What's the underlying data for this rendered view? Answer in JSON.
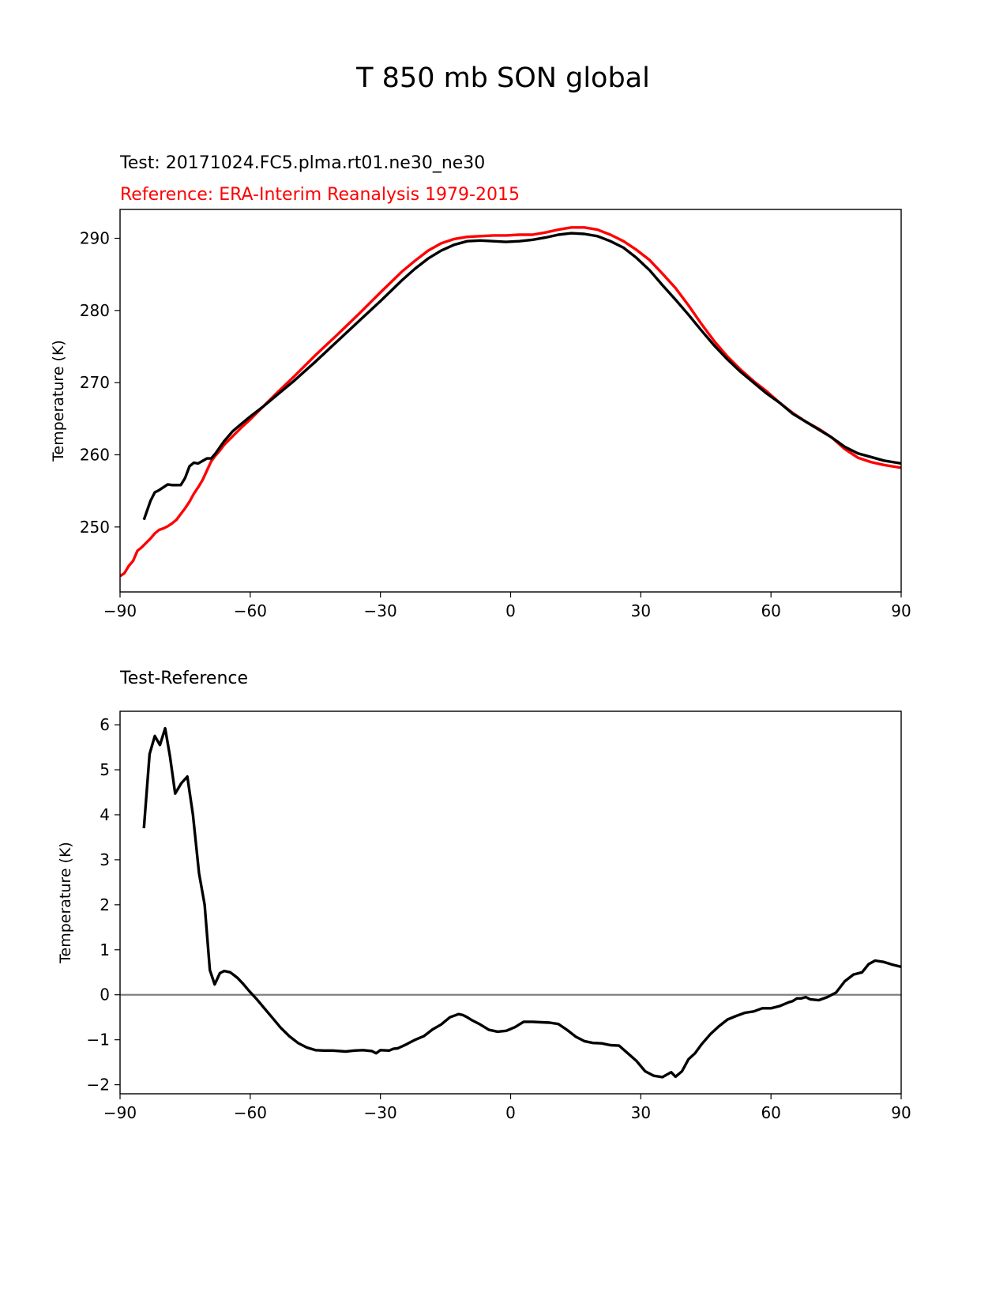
{
  "chart_data": [
    {
      "type": "line",
      "title": "T 850 mb SON global",
      "subtitle_test": "Test: 20171024.FC5.plma.rt01.ne30_ne30",
      "subtitle_reference": "Reference: ERA-Interim Reanalysis 1979-2015",
      "xlabel": "",
      "ylabel": "Temperature (K)",
      "xlim": [
        -90,
        90
      ],
      "ylim": [
        241,
        294
      ],
      "xticks": [
        -90,
        -60,
        -30,
        0,
        30,
        60,
        90
      ],
      "xtick_labels": [
        "−90",
        "−60",
        "−30",
        "0",
        "30",
        "60",
        "90"
      ],
      "yticks": [
        250,
        260,
        270,
        280,
        290
      ],
      "ytick_labels": [
        "250",
        "260",
        "270",
        "280",
        "290"
      ],
      "series": [
        {
          "name": "Test",
          "color": "#000000",
          "x": [
            -84.5,
            -83,
            -82,
            -81,
            -79,
            -78,
            -76,
            -75,
            -74,
            -73,
            -72,
            -70,
            -69,
            -68,
            -66,
            -64,
            -62,
            -60,
            -57,
            -54,
            -50,
            -45,
            -40,
            -35,
            -30,
            -25,
            -22,
            -19,
            -16,
            -13,
            -10,
            -7,
            -4,
            -1,
            2,
            5,
            8,
            11,
            14,
            17,
            20,
            23,
            26,
            29,
            32,
            35,
            38,
            41,
            44,
            47,
            50,
            53,
            56,
            59,
            62,
            65,
            68,
            71,
            74,
            77,
            80,
            83,
            86,
            89,
            90
          ],
          "values": [
            251,
            253.6,
            254.8,
            255.1,
            255.9,
            255.8,
            255.8,
            256.8,
            258.4,
            258.9,
            258.8,
            259.5,
            259.5,
            260.2,
            261.9,
            263.3,
            264.3,
            265.3,
            266.7,
            268.2,
            270.2,
            272.9,
            275.7,
            278.5,
            281.3,
            284.2,
            285.8,
            287.2,
            288.3,
            289.1,
            289.6,
            289.7,
            289.6,
            289.5,
            289.6,
            289.8,
            290.1,
            290.5,
            290.7,
            290.6,
            290.3,
            289.6,
            288.7,
            287.3,
            285.6,
            283.5,
            281.5,
            279.4,
            277.2,
            275.1,
            273.2,
            271.5,
            270,
            268.5,
            267.2,
            265.7,
            264.6,
            263.5,
            262.4,
            261.1,
            260.2,
            259.7,
            259.2,
            258.9,
            258.8
          ]
        },
        {
          "name": "Reference",
          "color": "#ff0000",
          "x": [
            -90,
            -89,
            -88,
            -87,
            -86,
            -85,
            -84,
            -83,
            -82,
            -81,
            -80,
            -79,
            -78,
            -77,
            -76,
            -75,
            -74,
            -73,
            -72,
            -71,
            -70,
            -69,
            -68,
            -67,
            -66,
            -64,
            -62,
            -60,
            -57,
            -54,
            -50,
            -45,
            -40,
            -35,
            -30,
            -25,
            -22,
            -19,
            -16,
            -13,
            -10,
            -7,
            -4,
            -1,
            2,
            5,
            8,
            11,
            14,
            17,
            20,
            23,
            26,
            29,
            32,
            35,
            38,
            41,
            44,
            47,
            50,
            53,
            56,
            59,
            62,
            65,
            68,
            71,
            74,
            77,
            80,
            83,
            86,
            89,
            90
          ],
          "values": [
            243.2,
            243.6,
            244.6,
            245.3,
            246.7,
            247.2,
            247.8,
            248.4,
            249.1,
            249.6,
            249.8,
            250.1,
            250.5,
            251,
            251.8,
            252.6,
            253.5,
            254.6,
            255.5,
            256.5,
            257.8,
            259.1,
            259.9,
            260.6,
            261.4,
            262.6,
            263.8,
            264.9,
            266.7,
            268.5,
            270.8,
            273.8,
            276.6,
            279.5,
            282.5,
            285.4,
            286.9,
            288.3,
            289.3,
            289.9,
            290.2,
            290.3,
            290.4,
            290.4,
            290.5,
            290.5,
            290.8,
            291.2,
            291.5,
            291.5,
            291.2,
            290.5,
            289.6,
            288.4,
            287,
            285.1,
            283.1,
            280.7,
            278.1,
            275.7,
            273.6,
            271.8,
            270.2,
            268.8,
            267.2,
            265.8,
            264.6,
            263.6,
            262.4,
            260.8,
            259.6,
            259,
            258.6,
            258.3,
            258.2
          ]
        }
      ]
    },
    {
      "type": "line",
      "title": "Test-Reference",
      "xlabel": "",
      "ylabel": "Temperature (K)",
      "xlim": [
        -90,
        90
      ],
      "ylim": [
        -2.2,
        6.3
      ],
      "xticks": [
        -90,
        -60,
        -30,
        0,
        30,
        60,
        90
      ],
      "xtick_labels": [
        "−90",
        "−60",
        "−30",
        "0",
        "30",
        "60",
        "90"
      ],
      "yticks": [
        -2,
        -1,
        0,
        1,
        2,
        3,
        4,
        5,
        6
      ],
      "ytick_labels": [
        "−2",
        "−1",
        "0",
        "1",
        "2",
        "3",
        "4",
        "5",
        "6"
      ],
      "zero_line_color": "#808080",
      "series": [
        {
          "name": "Test-Reference",
          "color": "#000000",
          "x": [
            -84.5,
            -83.2,
            -82,
            -80.8,
            -79.6,
            -78.5,
            -77.3,
            -75.9,
            -74.5,
            -73.2,
            -71.8,
            -70.5,
            -69.3,
            -68.2,
            -67,
            -66,
            -64.6,
            -63,
            -61.6,
            -60.2,
            -58.5,
            -57,
            -55,
            -53,
            -51,
            -49,
            -47,
            -45,
            -43,
            -41,
            -38,
            -36,
            -34,
            -32,
            -31,
            -30,
            -28,
            -27,
            -26,
            -24,
            -23,
            -22,
            -20,
            -18,
            -16,
            -14,
            -12,
            -11,
            -10,
            -9,
            -7,
            -5,
            -3,
            -1,
            1,
            3,
            5,
            7,
            9,
            11,
            13,
            15,
            17,
            19,
            21,
            23,
            25,
            27,
            29,
            31,
            33,
            35,
            37,
            38,
            39.5,
            41,
            42.5,
            44,
            46,
            48,
            50,
            52,
            54,
            56,
            58,
            60,
            62,
            64,
            65,
            66,
            67,
            68,
            69,
            71,
            73,
            75,
            77,
            79,
            81,
            82.5,
            84,
            86,
            88,
            90
          ],
          "values": [
            3.7,
            5.35,
            5.75,
            5.55,
            5.92,
            5.3,
            4.47,
            4.7,
            4.85,
            4,
            2.7,
            2,
            0.55,
            0.23,
            0.48,
            0.53,
            0.5,
            0.38,
            0.24,
            0.08,
            -0.1,
            -0.27,
            -0.5,
            -0.73,
            -0.92,
            -1.07,
            -1.17,
            -1.23,
            -1.24,
            -1.24,
            -1.26,
            -1.24,
            -1.23,
            -1.25,
            -1.3,
            -1.23,
            -1.24,
            -1.2,
            -1.19,
            -1.1,
            -1.05,
            -1,
            -0.92,
            -0.77,
            -0.66,
            -0.5,
            -0.43,
            -0.45,
            -0.5,
            -0.56,
            -0.66,
            -0.78,
            -0.82,
            -0.8,
            -0.72,
            -0.6,
            -0.6,
            -0.61,
            -0.62,
            -0.65,
            -0.78,
            -0.93,
            -1.03,
            -1.07,
            -1.08,
            -1.12,
            -1.13,
            -1.3,
            -1.47,
            -1.7,
            -1.8,
            -1.83,
            -1.72,
            -1.82,
            -1.7,
            -1.43,
            -1.3,
            -1.1,
            -0.88,
            -0.7,
            -0.55,
            -0.47,
            -0.4,
            -0.37,
            -0.3,
            -0.3,
            -0.25,
            -0.17,
            -0.14,
            -0.08,
            -0.08,
            -0.05,
            -0.1,
            -0.12,
            -0.05,
            0.05,
            0.3,
            0.45,
            0.5,
            0.68,
            0.76,
            0.73,
            0.67,
            0.62
          ]
        }
      ]
    }
  ]
}
